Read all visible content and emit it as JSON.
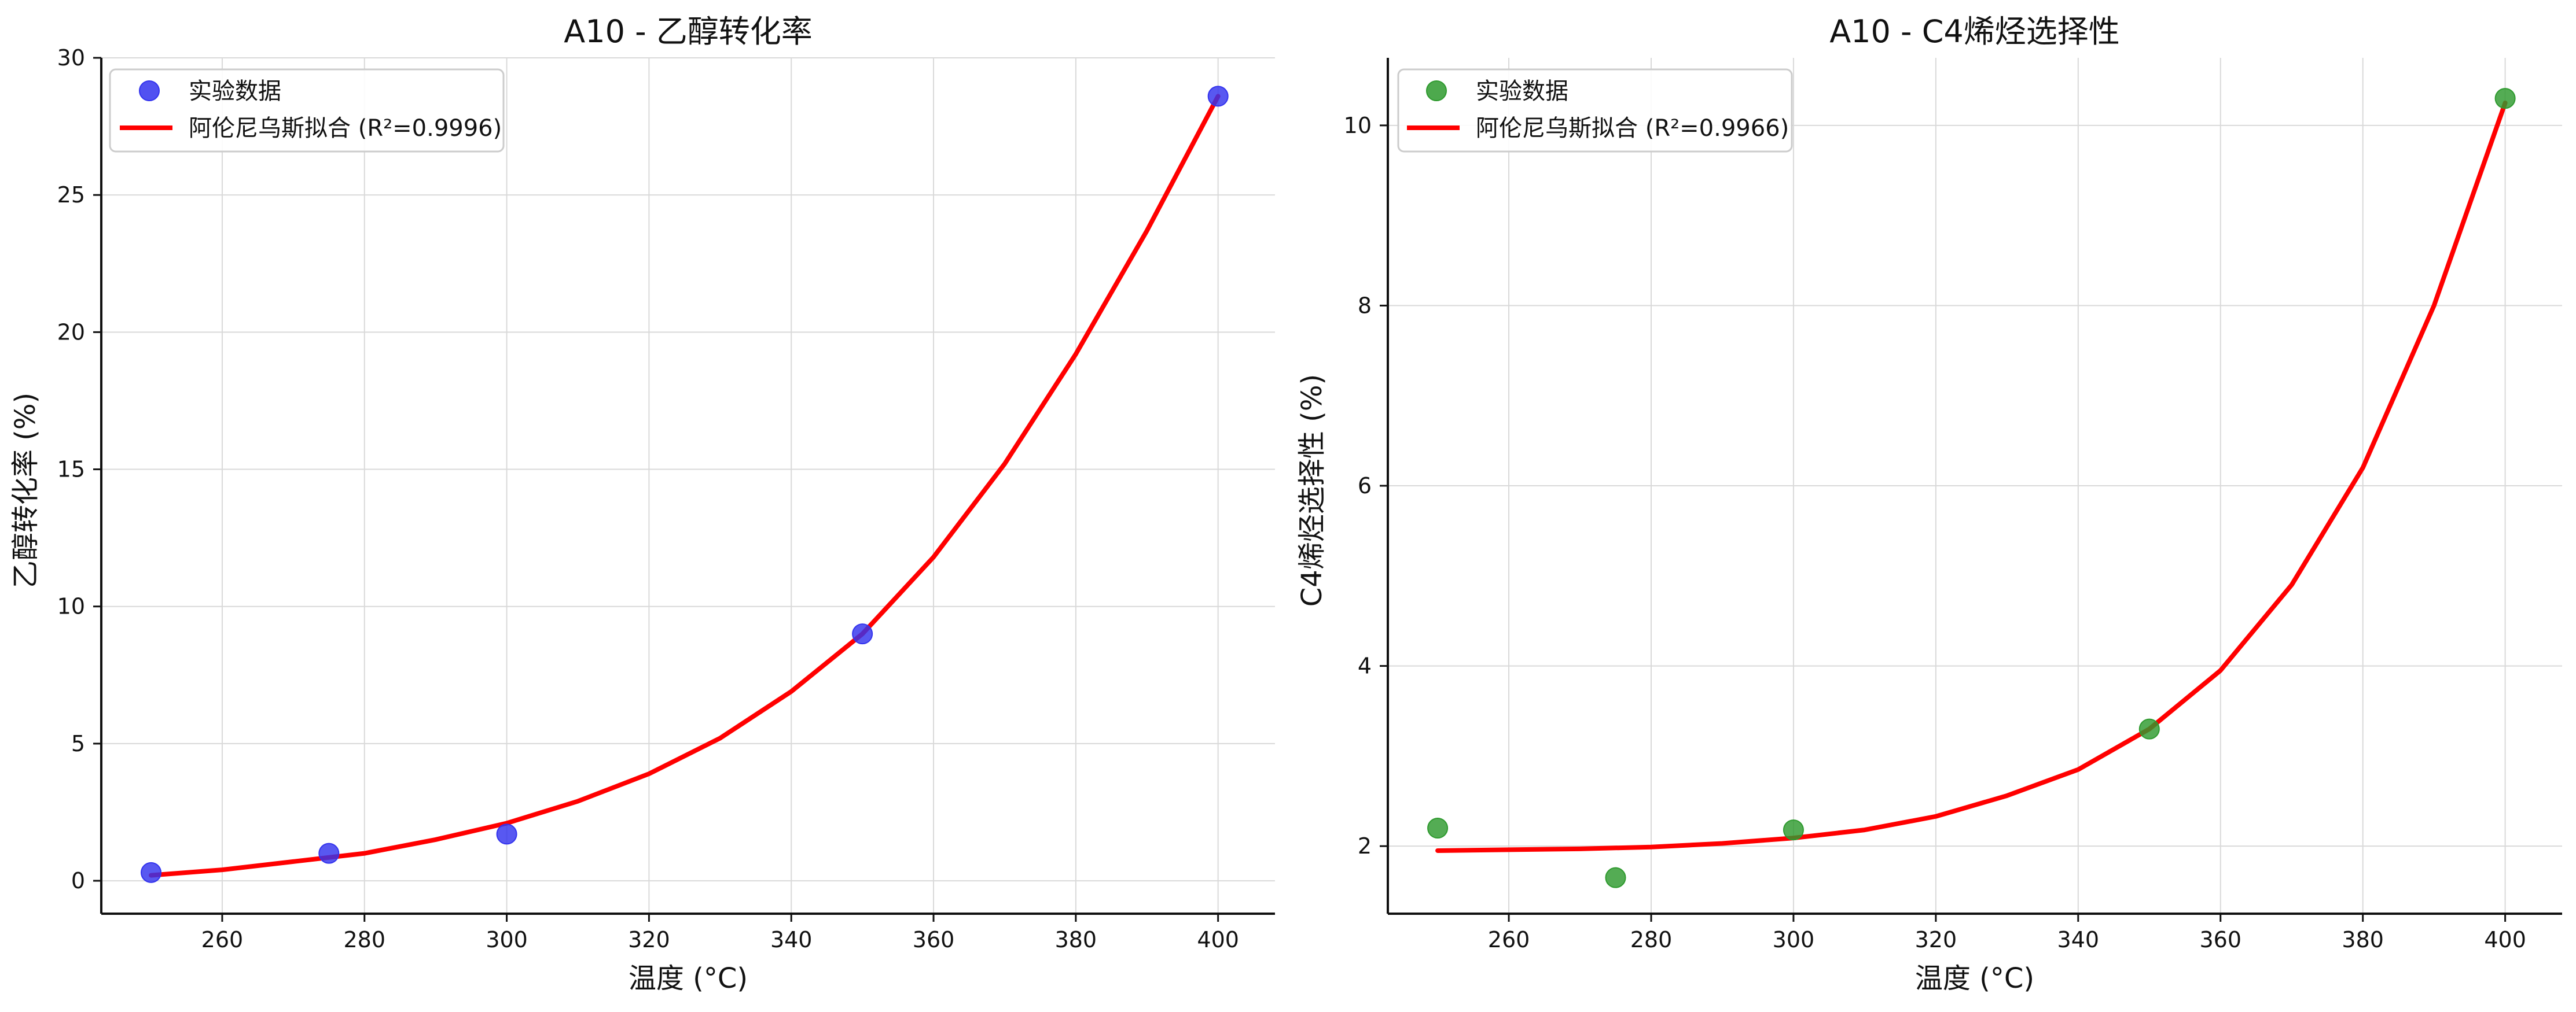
{
  "figure": {
    "background": "#ffffff"
  },
  "chart_data": [
    {
      "type": "scatter",
      "title": "A10 - 乙醇转化率",
      "xlabel": "温度 (°C)",
      "ylabel": "乙醇转化率 (%)",
      "xlim": [
        243,
        408
      ],
      "ylim": [
        -1.2,
        30
      ],
      "xticks": [
        260,
        280,
        300,
        320,
        340,
        360,
        380,
        400
      ],
      "yticks": [
        0,
        5,
        10,
        15,
        20,
        25,
        30
      ],
      "grid": true,
      "legend_position": "top-left",
      "series": [
        {
          "name": "实验数据",
          "kind": "scatter",
          "color": "#3333ee",
          "x": [
            250,
            275,
            300,
            350,
            400
          ],
          "y": [
            0.3,
            1.0,
            1.7,
            9.0,
            28.6
          ]
        },
        {
          "name": "阿伦尼乌斯拟合 (R²=0.9996)",
          "kind": "line",
          "color": "#ff0000",
          "x": [
            250,
            260,
            270,
            280,
            290,
            300,
            310,
            320,
            330,
            340,
            350,
            360,
            370,
            380,
            390,
            400
          ],
          "y": [
            0.2,
            0.4,
            0.7,
            1.0,
            1.5,
            2.1,
            2.9,
            3.9,
            5.2,
            6.9,
            9.0,
            11.8,
            15.2,
            19.2,
            23.7,
            28.6
          ]
        }
      ]
    },
    {
      "type": "scatter",
      "title": "A10 - C4烯烃选择性",
      "xlabel": "温度 (°C)",
      "ylabel": "C4烯烃选择性 (%)",
      "xlim": [
        243,
        408
      ],
      "ylim": [
        1.25,
        10.75
      ],
      "xticks": [
        260,
        280,
        300,
        320,
        340,
        360,
        380,
        400
      ],
      "yticks": [
        2,
        4,
        6,
        8,
        10
      ],
      "grid": true,
      "legend_position": "top-left",
      "series": [
        {
          "name": "实验数据",
          "kind": "scatter",
          "color": "#2e9a2e",
          "x": [
            250,
            275,
            300,
            350,
            400
          ],
          "y": [
            2.2,
            1.65,
            2.18,
            3.3,
            10.3
          ]
        },
        {
          "name": "阿伦尼乌斯拟合 (R²=0.9966)",
          "kind": "line",
          "color": "#ff0000",
          "x": [
            250,
            260,
            270,
            280,
            290,
            300,
            310,
            320,
            330,
            340,
            350,
            360,
            370,
            380,
            390,
            400
          ],
          "y": [
            1.95,
            1.96,
            1.97,
            1.99,
            2.03,
            2.09,
            2.18,
            2.33,
            2.56,
            2.85,
            3.3,
            3.95,
            4.9,
            6.2,
            8.0,
            10.25
          ]
        }
      ]
    }
  ]
}
